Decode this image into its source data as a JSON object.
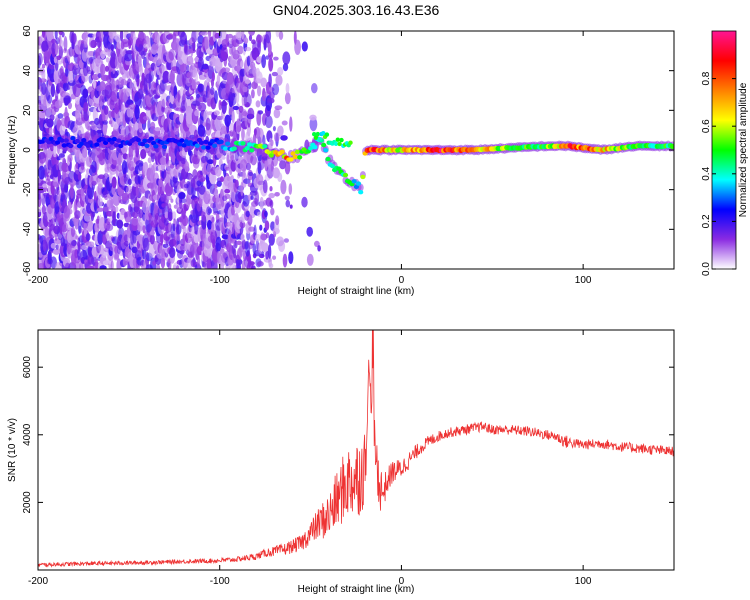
{
  "title": "GN04.2025.303.16.43.E36",
  "chart_data": [
    {
      "type": "heatmap",
      "title": "",
      "xlabel": "Height of straight line (km)",
      "ylabel": "Frequency (Hz)",
      "xlim": [
        -200,
        150
      ],
      "ylim": [
        -60,
        60
      ],
      "xticks": [
        -200,
        -100,
        0,
        100
      ],
      "yticks": [
        -60,
        -40,
        -20,
        0,
        20,
        40,
        60
      ],
      "colorbar": {
        "label": "Normalized spectral amplitude",
        "range": [
          0,
          1
        ],
        "ticks": [
          0,
          0.2,
          0.4,
          0.6,
          0.8
        ],
        "tick_labels": [
          "0.0",
          "0.2",
          "0.4",
          "0.6",
          "0.8"
        ],
        "colormap": [
          "#ffffff",
          "#8a2be2",
          "#0000ff",
          "#00ffff",
          "#00ff00",
          "#ffff00",
          "#ff8000",
          "#ff0000",
          "#ff1493"
        ]
      },
      "ridge": [
        {
          "x": -200,
          "freq": 4,
          "amp": 0.25
        },
        {
          "x": -150,
          "freq": 4,
          "amp": 0.25
        },
        {
          "x": -100,
          "freq": 3,
          "amp": 0.3
        },
        {
          "x": -90,
          "freq": 2,
          "amp": 0.45
        },
        {
          "x": -75,
          "freq": 0,
          "amp": 0.55
        },
        {
          "x": -62,
          "freq": -4,
          "amp": 0.8
        },
        {
          "x": -55,
          "freq": -2,
          "amp": 0.6
        },
        {
          "x": -45,
          "freq": 5,
          "amp": 0.45
        },
        {
          "x": -38,
          "freq": -8,
          "amp": 0.45
        },
        {
          "x": -30,
          "freq": -14,
          "amp": 0.5
        },
        {
          "x": -22,
          "freq": -20,
          "amp": 0.35
        },
        {
          "x": -20,
          "freq": 0,
          "amp": 0.85
        },
        {
          "x": -10,
          "freq": 0,
          "amp": 0.8
        },
        {
          "x": 0,
          "freq": 0,
          "amp": 0.65
        },
        {
          "x": 20,
          "freq": 0,
          "amp": 0.95
        },
        {
          "x": 40,
          "freq": 0,
          "amp": 0.85
        },
        {
          "x": 60,
          "freq": 1,
          "amp": 0.55
        },
        {
          "x": 80,
          "freq": 2,
          "amp": 0.55
        },
        {
          "x": 92,
          "freq": 2,
          "amp": 0.85
        },
        {
          "x": 110,
          "freq": 0,
          "amp": 0.75
        },
        {
          "x": 130,
          "freq": 2,
          "amp": 0.5
        },
        {
          "x": 150,
          "freq": 2,
          "amp": 0.5
        }
      ]
    },
    {
      "type": "line",
      "title": "",
      "xlabel": "Height of straight line (km)",
      "ylabel": "SNR (10 * v/v)",
      "xlim": [
        -200,
        150
      ],
      "ylim": [
        0,
        7100
      ],
      "xticks": [
        -200,
        -100,
        0,
        100
      ],
      "yticks": [
        2000,
        4000,
        6000
      ],
      "series": [
        {
          "name": "SNR",
          "color": "#ee3333",
          "x": [
            -200,
            -180,
            -160,
            -140,
            -120,
            -100,
            -90,
            -80,
            -75,
            -70,
            -65,
            -60,
            -55,
            -50,
            -45,
            -40,
            -35,
            -30,
            -25,
            -20,
            -18,
            -16,
            -14,
            -12,
            -10,
            -8,
            -5,
            0,
            5,
            10,
            15,
            20,
            25,
            30,
            35,
            40,
            45,
            50,
            60,
            70,
            80,
            85,
            90,
            95,
            100,
            110,
            120,
            130,
            140,
            150
          ],
          "y": [
            150,
            180,
            200,
            220,
            250,
            280,
            320,
            400,
            500,
            550,
            600,
            700,
            800,
            1100,
            1400,
            1600,
            2100,
            2600,
            2700,
            3000,
            6000,
            4500,
            3300,
            2500,
            2300,
            2600,
            2900,
            3000,
            3300,
            3600,
            3800,
            3950,
            4050,
            4100,
            4150,
            4200,
            4250,
            4150,
            4150,
            4100,
            4000,
            3950,
            3800,
            3750,
            3700,
            3750,
            3650,
            3600,
            3550,
            3500
          ],
          "noise": [
            60,
            60,
            60,
            60,
            60,
            70,
            80,
            100,
            120,
            150,
            180,
            200,
            250,
            350,
            500,
            700,
            900,
            1100,
            1200,
            1200,
            300,
            500,
            800,
            800,
            500,
            400,
            350,
            300,
            250,
            200,
            180,
            160,
            150,
            150,
            150,
            150,
            150,
            150,
            150,
            150,
            150,
            150,
            200,
            150,
            150,
            150,
            150,
            150,
            150,
            150
          ]
        }
      ]
    }
  ]
}
